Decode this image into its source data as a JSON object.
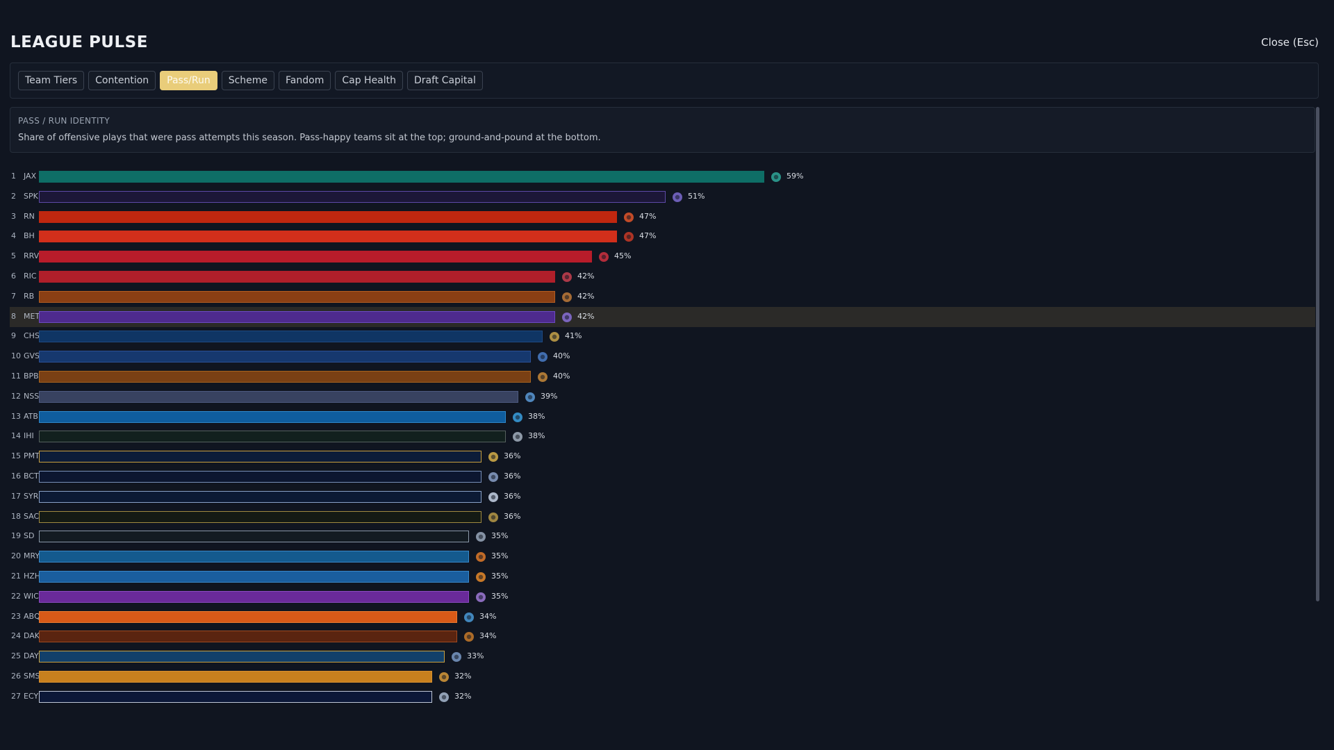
{
  "header": {
    "title": "LEAGUE PULSE",
    "close_label": "Close (Esc)"
  },
  "tabs": [
    {
      "label": "Team Tiers",
      "active": false
    },
    {
      "label": "Contention",
      "active": false
    },
    {
      "label": "Pass/Run",
      "active": true
    },
    {
      "label": "Scheme",
      "active": false
    },
    {
      "label": "Fandom",
      "active": false
    },
    {
      "label": "Cap Health",
      "active": false
    },
    {
      "label": "Draft Capital",
      "active": false
    }
  ],
  "panel": {
    "title": "PASS / RUN IDENTITY",
    "description": "Share of offensive plays that were pass attempts this season. Pass-happy teams sit at the top; ground-and-pound at the bottom."
  },
  "highlighted_team": "MET",
  "teams": [
    {
      "rank": "1",
      "team": "JAX",
      "pct": "59%",
      "fill": "#0e6e66",
      "border": "#0e6e66",
      "logo": "fish-logo-icon",
      "logo_color": "#2fa89a"
    },
    {
      "rank": "2",
      "team": "SPK",
      "pct": "51%",
      "fill": "#1c1738",
      "border": "#5e4aa8",
      "logo": "spike-logo-icon",
      "logo_color": "#7c6bd0"
    },
    {
      "rank": "3",
      "team": "RN",
      "pct": "47%",
      "fill": "#c0270f",
      "border": "#c0270f",
      "logo": "flame-logo-icon",
      "logo_color": "#e2552a"
    },
    {
      "rank": "4",
      "team": "BH",
      "pct": "47%",
      "fill": "#d22f1b",
      "border": "#d22f1b",
      "logo": "shield-logo-icon",
      "logo_color": "#c93a27"
    },
    {
      "rank": "5",
      "team": "RRV",
      "pct": "45%",
      "fill": "#b81c2a",
      "border": "#b81c2a",
      "logo": "dragon-logo-icon",
      "logo_color": "#d03040"
    },
    {
      "rank": "6",
      "team": "RIC",
      "pct": "42%",
      "fill": "#b01f2a",
      "border": "#b01f2a",
      "logo": "cardinal-logo-icon",
      "logo_color": "#c84050"
    },
    {
      "rank": "7",
      "team": "RB",
      "pct": "42%",
      "fill": "#8a3f14",
      "border": "#b25c22",
      "logo": "bear-logo-icon",
      "logo_color": "#c07a3a"
    },
    {
      "rank": "8",
      "team": "MET",
      "pct": "42%",
      "fill": "#4e2a8e",
      "border": "#6c4ac2",
      "logo": "star-logo-icon",
      "logo_color": "#8a70d8"
    },
    {
      "rank": "9",
      "team": "CHS",
      "pct": "41%",
      "fill": "#0f3564",
      "border": "#1e4a82",
      "logo": "eagle-logo-icon",
      "logo_color": "#c9a54a"
    },
    {
      "rank": "10",
      "team": "GVS",
      "pct": "40%",
      "fill": "#16386e",
      "border": "#2a5096",
      "logo": "helmet-logo-icon",
      "logo_color": "#4a7cc8"
    },
    {
      "rank": "11",
      "team": "BPB",
      "pct": "40%",
      "fill": "#7a4014",
      "border": "#a8641e",
      "logo": "buffalo-logo-icon",
      "logo_color": "#c88a3a"
    },
    {
      "rank": "12",
      "team": "NSS",
      "pct": "39%",
      "fill": "#384260",
      "border": "#4d5a80",
      "logo": "hawk-logo-icon",
      "logo_color": "#5a9ad8"
    },
    {
      "rank": "13",
      "team": "ATB",
      "pct": "38%",
      "fill": "#0f5d9e",
      "border": "#2f86c8",
      "logo": "wave-logo-icon",
      "logo_color": "#3aa0e0"
    },
    {
      "rank": "14",
      "team": "IHI",
      "pct": "38%",
      "fill": "#12201e",
      "border": "#55605e",
      "logo": "crest-logo-icon",
      "logo_color": "#a4b0c0"
    },
    {
      "rank": "15",
      "team": "PMT",
      "pct": "36%",
      "fill": "#0c1c38",
      "border": "#c9a040",
      "logo": "badge-logo-icon",
      "logo_color": "#d8b04a"
    },
    {
      "rank": "16",
      "team": "BCT",
      "pct": "36%",
      "fill": "#0c1630",
      "border": "#7890b8",
      "logo": "knight-logo-icon",
      "logo_color": "#8aa0c8"
    },
    {
      "rank": "17",
      "team": "SYR",
      "pct": "36%",
      "fill": "#0c1a34",
      "border": "#8aa2c8",
      "logo": "wolf-logo-icon",
      "logo_color": "#c8d4e8"
    },
    {
      "rank": "18",
      "team": "SAC",
      "pct": "36%",
      "fill": "#141a14",
      "border": "#a08a40",
      "logo": "bison-logo-icon",
      "logo_color": "#b89a48"
    },
    {
      "rank": "19",
      "team": "SD",
      "pct": "35%",
      "fill": "#131b22",
      "border": "#8a98a8",
      "logo": "fin-logo-icon",
      "logo_color": "#9aa8bc"
    },
    {
      "rank": "20",
      "team": "MRY",
      "pct": "35%",
      "fill": "#145a8e",
      "border": "#3a88c8",
      "logo": "bird-logo-icon",
      "logo_color": "#e07a2a"
    },
    {
      "rank": "21",
      "team": "HZH",
      "pct": "35%",
      "fill": "#1a5e9e",
      "border": "#3a88c8",
      "logo": "sun-logo-icon",
      "logo_color": "#e88a2a"
    },
    {
      "rank": "22",
      "team": "WIC",
      "pct": "35%",
      "fill": "#6a2a9a",
      "border": "#8a4ac0",
      "logo": "tornado-logo-icon",
      "logo_color": "#a07ad8"
    },
    {
      "rank": "23",
      "team": "ABQ",
      "pct": "34%",
      "fill": "#d85a18",
      "border": "#e87a30",
      "logo": "balloon-logo-icon",
      "logo_color": "#4a9ad8"
    },
    {
      "rank": "24",
      "team": "DAK",
      "pct": "34%",
      "fill": "#5a2410",
      "border": "#a04a20",
      "logo": "ram-logo-icon",
      "logo_color": "#c87a2a"
    },
    {
      "rank": "25",
      "team": "DAY",
      "pct": "33%",
      "fill": "#12406a",
      "border": "#c8a040",
      "logo": "wing-logo-icon",
      "logo_color": "#7a9ac8"
    },
    {
      "rank": "26",
      "team": "SMS",
      "pct": "32%",
      "fill": "#c8801e",
      "border": "#d89030",
      "logo": "scorpion-logo-icon",
      "logo_color": "#d89a3a"
    },
    {
      "rank": "27",
      "team": "ECY",
      "pct": "32%",
      "fill": "#0c1838",
      "border": "#c0c8d8",
      "logo": "globe-logo-icon",
      "logo_color": "#a8b8d0"
    }
  ]
}
